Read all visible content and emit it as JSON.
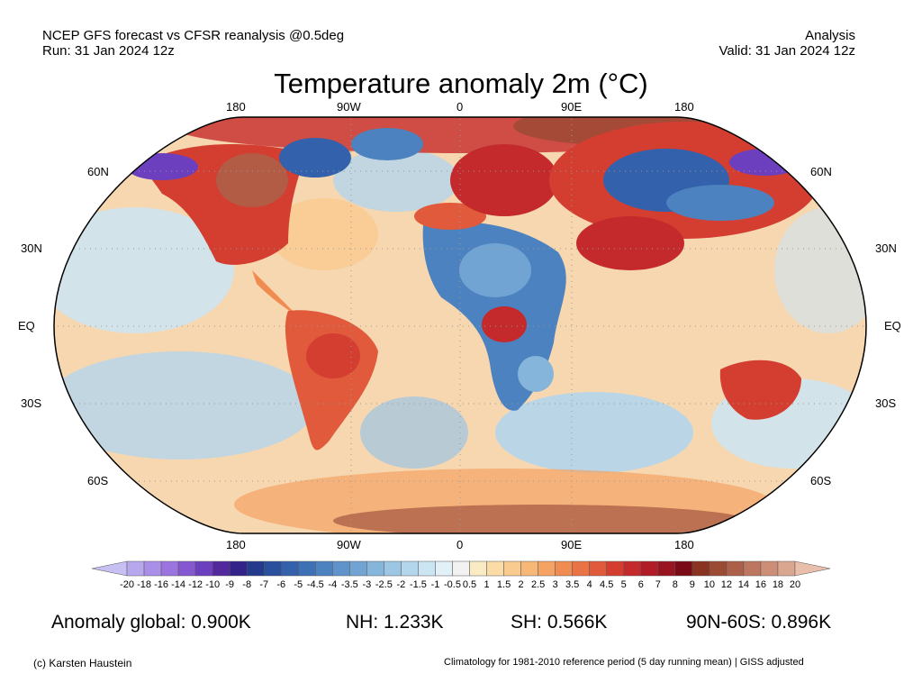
{
  "header": {
    "line1_left": "NCEP GFS forecast vs CFSR reanalysis @0.5deg",
    "line2_left": "Run: 31 Jan 2024 12z",
    "line1_right": "Analysis",
    "line2_right": "Valid: 31 Jan 2024 12z"
  },
  "title": "Temperature anomaly 2m (°C)",
  "map": {
    "lon_labels": [
      "180",
      "90W",
      "0",
      "90E",
      "180"
    ],
    "lat_labels_left": [
      "60N",
      "30N",
      "EQ",
      "30S",
      "60S"
    ],
    "lat_labels_right": [
      "60N",
      "30N",
      "EQ",
      "30S",
      "60S"
    ]
  },
  "colorbar": {
    "ticks": [
      "-20",
      "-18",
      "-16",
      "-14",
      "-12",
      "-10",
      "-9",
      "-8",
      "-7",
      "-6",
      "-5",
      "-4.5",
      "-4",
      "-3.5",
      "-3",
      "-2.5",
      "-2",
      "-1.5",
      "-1",
      "-0.5",
      "0.5",
      "1",
      "1.5",
      "2",
      "2.5",
      "3",
      "3.5",
      "4",
      "4.5",
      "5",
      "6",
      "7",
      "8",
      "9",
      "10",
      "12",
      "14",
      "16",
      "18",
      "20"
    ],
    "colors": [
      "#c6c1f2",
      "#b7a8ee",
      "#a98fe8",
      "#9b74e0",
      "#8557d1",
      "#6c3fbf",
      "#53289f",
      "#33228a",
      "#243a8c",
      "#2a4f9c",
      "#3361ab",
      "#3d70b4",
      "#4c82bf",
      "#5f93c9",
      "#72a4d3",
      "#86b5dc",
      "#9cc6e4",
      "#b3d6ec",
      "#cbe5f3",
      "#e2f0f8",
      "#f2f2f2",
      "#fbebc5",
      "#fbdca6",
      "#f9cb8e",
      "#f7b877",
      "#f4a364",
      "#f08c52",
      "#ea7346",
      "#e15a3b",
      "#d43e31",
      "#c42a2b",
      "#b01d26",
      "#981420",
      "#7a0b16",
      "#8a3320",
      "#9b4a34",
      "#ac6049",
      "#bd7760",
      "#cc8e77",
      "#dba690",
      "#e9bfab"
    ]
  },
  "stats": {
    "global": "Anomaly global: 0.900K",
    "nh": "NH: 1.233K",
    "sh": "SH: 0.566K",
    "arctic": "90N-60S: 0.896K"
  },
  "footer": {
    "credit": "(c) Karsten Haustein",
    "note": "Climatology for 1981-2010 reference period (5 day running mean) | GISS adjusted"
  }
}
